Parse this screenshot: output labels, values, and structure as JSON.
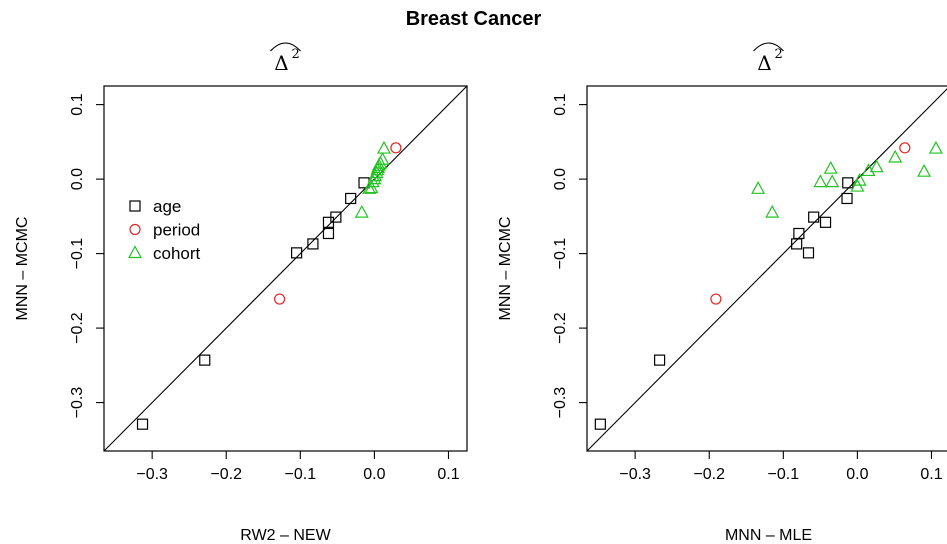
{
  "title": "Breast Cancer",
  "colors": {
    "age": "#000000",
    "period": "#df2525",
    "cohort": "#22c322"
  },
  "chart_data": [
    {
      "type": "scatter",
      "subtitle": "Δ",
      "subtitle_superscript": "2",
      "xlabel": "RW2 – NEW",
      "ylabel": "MNN – MCMC",
      "xlim": [
        -0.365,
        0.125
      ],
      "ylim": [
        -0.365,
        0.125
      ],
      "xticks": [
        -0.3,
        -0.2,
        -0.1,
        0.0,
        0.1
      ],
      "yticks": [
        -0.3,
        -0.2,
        -0.1,
        0.0,
        0.1
      ],
      "xtick_labels": [
        "−0.3",
        "−0.2",
        "−0.1",
        "0.0",
        "0.1"
      ],
      "ytick_labels": [
        "−0.3",
        "−0.2",
        "−0.1",
        "0.0",
        "0.1"
      ],
      "reference_line": "y = x",
      "legend": {
        "placement": "left",
        "entries": [
          {
            "label": "age",
            "marker": "square"
          },
          {
            "label": "period",
            "marker": "circle"
          },
          {
            "label": "cohort",
            "marker": "triangle"
          }
        ]
      },
      "series": [
        {
          "name": "age",
          "marker": "square",
          "points": [
            [
              -0.313,
              -0.329
            ],
            [
              -0.229,
              -0.243
            ],
            [
              -0.105,
              -0.099
            ],
            [
              -0.083,
              -0.087
            ],
            [
              -0.062,
              -0.073
            ],
            [
              -0.062,
              -0.058
            ],
            [
              -0.052,
              -0.051
            ],
            [
              -0.032,
              -0.026
            ],
            [
              -0.014,
              -0.005
            ]
          ]
        },
        {
          "name": "period",
          "marker": "circle",
          "points": [
            [
              -0.128,
              -0.161
            ],
            [
              0.029,
              0.042
            ]
          ]
        },
        {
          "name": "cohort",
          "marker": "triangle",
          "points": [
            [
              -0.017,
              -0.045
            ],
            [
              -0.007,
              -0.013
            ],
            [
              -0.004,
              -0.012
            ],
            [
              -0.002,
              -0.004
            ],
            [
              0.0,
              0.0
            ],
            [
              0.001,
              0.004
            ],
            [
              0.003,
              0.008
            ],
            [
              0.004,
              0.012
            ],
            [
              0.005,
              0.015
            ],
            [
              0.006,
              0.018
            ],
            [
              0.008,
              0.021
            ],
            [
              0.011,
              0.026
            ],
            [
              0.013,
              0.041
            ]
          ]
        }
      ]
    },
    {
      "type": "scatter",
      "subtitle": "Δ",
      "subtitle_superscript": "2",
      "xlabel": "MNN – MLE",
      "ylabel": "MNN – MCMC",
      "xlim": [
        -0.365,
        0.125
      ],
      "ylim": [
        -0.365,
        0.125
      ],
      "xticks": [
        -0.3,
        -0.2,
        -0.1,
        0.0,
        0.1
      ],
      "yticks": [
        -0.3,
        -0.2,
        -0.1,
        0.0,
        0.1
      ],
      "xtick_labels": [
        "−0.3",
        "−0.2",
        "−0.1",
        "0.0",
        "0.1"
      ],
      "ytick_labels": [
        "−0.3",
        "−0.2",
        "−0.1",
        "0.0",
        "0.1"
      ],
      "reference_line": "y = x",
      "series": [
        {
          "name": "age",
          "marker": "square",
          "points": [
            [
              -0.347,
              -0.329
            ],
            [
              -0.267,
              -0.243
            ],
            [
              -0.082,
              -0.087
            ],
            [
              -0.079,
              -0.073
            ],
            [
              -0.066,
              -0.099
            ],
            [
              -0.059,
              -0.051
            ],
            [
              -0.043,
              -0.058
            ],
            [
              -0.014,
              -0.026
            ],
            [
              -0.013,
              -0.005
            ]
          ]
        },
        {
          "name": "period",
          "marker": "circle",
          "points": [
            [
              -0.191,
              -0.161
            ],
            [
              0.064,
              0.042
            ]
          ]
        },
        {
          "name": "cohort",
          "marker": "triangle",
          "points": [
            [
              -0.134,
              -0.013
            ],
            [
              -0.115,
              -0.045
            ],
            [
              -0.05,
              -0.004
            ],
            [
              -0.036,
              0.014
            ],
            [
              -0.034,
              -0.004
            ],
            [
              0.0,
              -0.01
            ],
            [
              0.003,
              -0.002
            ],
            [
              0.015,
              0.011
            ],
            [
              0.026,
              0.016
            ],
            [
              0.051,
              0.029
            ],
            [
              0.09,
              0.01
            ],
            [
              0.106,
              0.041
            ]
          ]
        }
      ]
    }
  ]
}
